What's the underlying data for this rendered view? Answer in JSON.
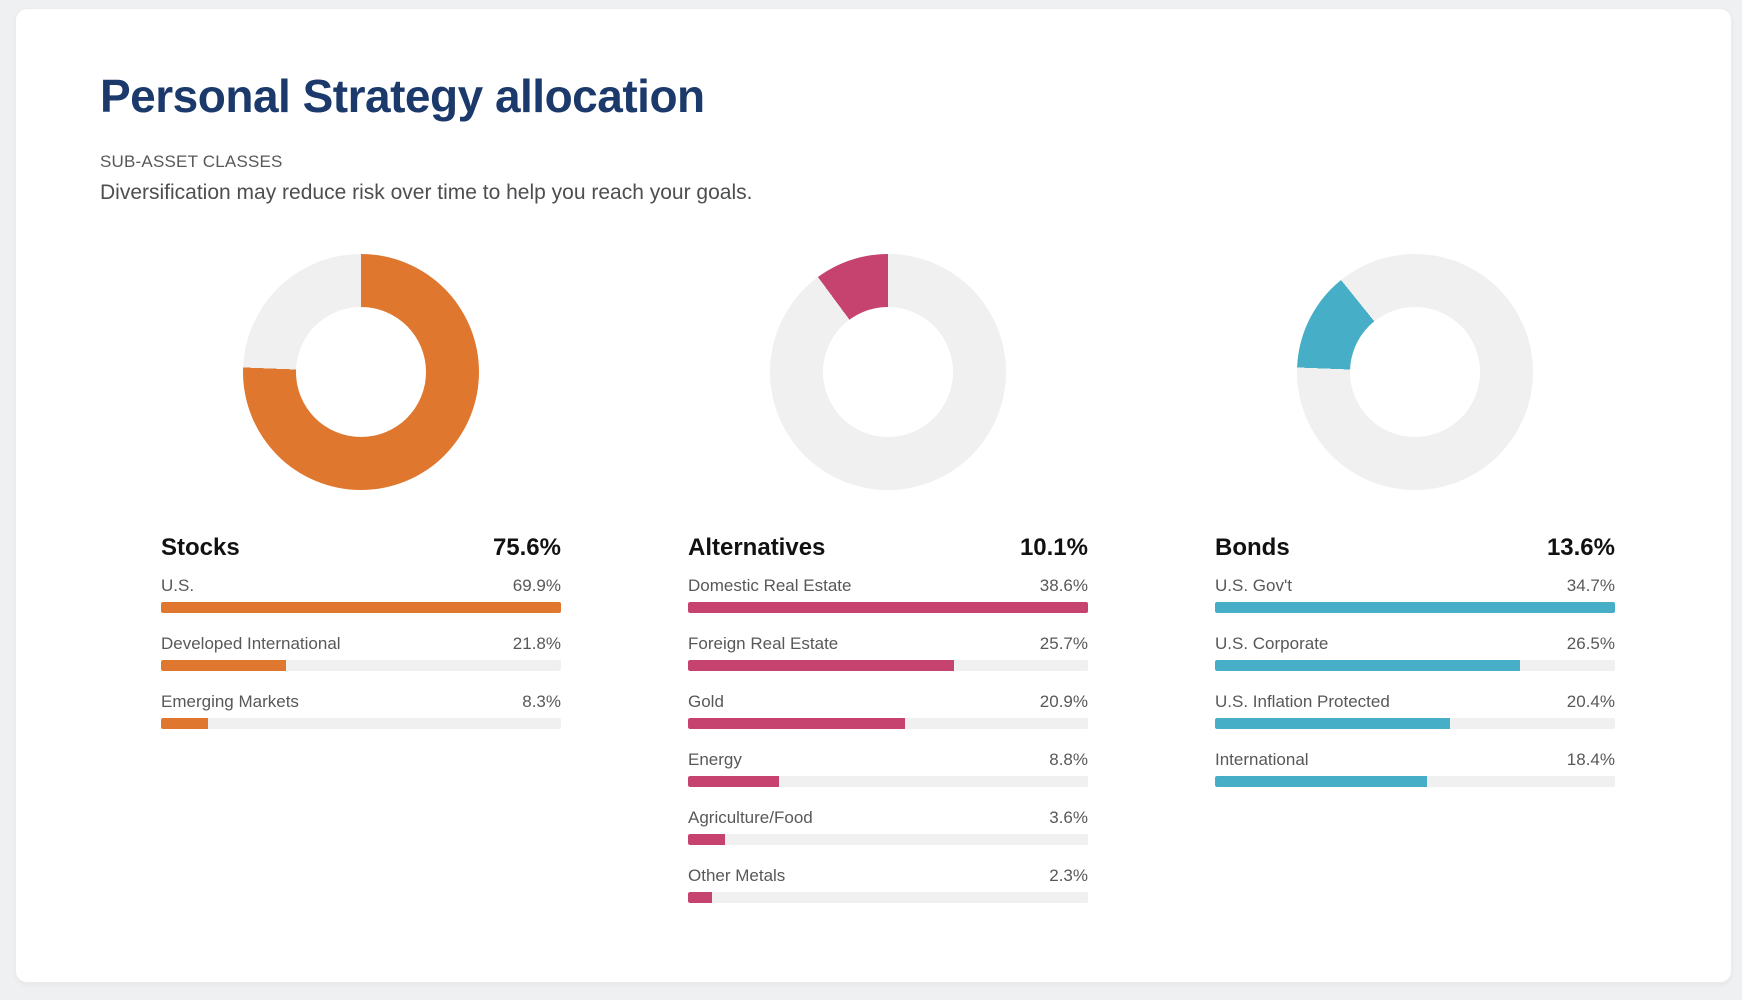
{
  "header": {
    "title": "Personal Strategy allocation",
    "eyebrow": "SUB-ASSET CLASSES",
    "subtitle": "Diversification may reduce risk over time to help you reach your goals."
  },
  "colors": {
    "title_navy": "#1b3a6b",
    "ring_gray": "#f0f0f1",
    "track_gray": "#f0f0f1",
    "stocks_orange": "#e0772f",
    "alternatives_pink": "#c6426f",
    "bonds_teal": "#46aec7"
  },
  "chart_data": [
    {
      "type": "pie",
      "group_label": "Stocks",
      "group_value": "75.6%",
      "group_pct": 75.6,
      "color": "#e0772f",
      "donut_segment": {
        "start_deg": 0,
        "end_deg": 272.2
      },
      "bars": [
        {
          "label": "U.S.",
          "value": "69.9%",
          "pct": 69.9
        },
        {
          "label": "Developed International",
          "value": "21.8%",
          "pct": 21.8
        },
        {
          "label": "Emerging Markets",
          "value": "8.3%",
          "pct": 8.3
        }
      ]
    },
    {
      "type": "pie",
      "group_label": "Alternatives",
      "group_value": "10.1%",
      "group_pct": 10.1,
      "color": "#c6426f",
      "donut_segment": {
        "start_deg": 323.6,
        "end_deg": 360
      },
      "bars": [
        {
          "label": "Domestic Real Estate",
          "value": "38.6%",
          "pct": 38.6
        },
        {
          "label": "Foreign Real Estate",
          "value": "25.7%",
          "pct": 25.7
        },
        {
          "label": "Gold",
          "value": "20.9%",
          "pct": 20.9
        },
        {
          "label": "Energy",
          "value": "8.8%",
          "pct": 8.8
        },
        {
          "label": "Agriculture/Food",
          "value": "3.6%",
          "pct": 3.6
        },
        {
          "label": "Other Metals",
          "value": "2.3%",
          "pct": 2.3
        }
      ]
    },
    {
      "type": "pie",
      "group_label": "Bonds",
      "group_value": "13.6%",
      "group_pct": 13.6,
      "color": "#46aec7",
      "donut_segment": {
        "start_deg": 272.2,
        "end_deg": 321.2
      },
      "bars": [
        {
          "label": "U.S. Gov't",
          "value": "34.7%",
          "pct": 34.7
        },
        {
          "label": "U.S. Corporate",
          "value": "26.5%",
          "pct": 26.5
        },
        {
          "label": "U.S. Inflation Protected",
          "value": "20.4%",
          "pct": 20.4
        },
        {
          "label": "International",
          "value": "18.4%",
          "pct": 18.4
        }
      ]
    }
  ]
}
